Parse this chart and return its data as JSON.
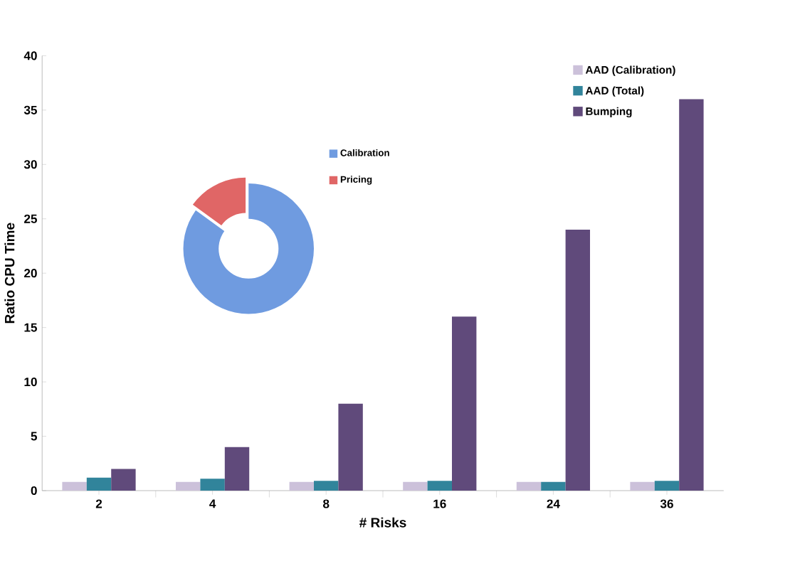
{
  "chart_data": [
    {
      "type": "bar",
      "xlabel": "# Risks",
      "ylabel": "Ratio CPU Time",
      "categories": [
        "2",
        "4",
        "8",
        "16",
        "24",
        "36"
      ],
      "series": [
        {
          "name": "AAD (Calibration)",
          "color": "#ccc1da",
          "values": [
            0.8,
            0.8,
            0.8,
            0.8,
            0.8,
            0.8
          ]
        },
        {
          "name": "AAD (Total)",
          "color": "#31849b",
          "values": [
            1.2,
            1.1,
            0.9,
            0.9,
            0.8,
            0.9
          ]
        },
        {
          "name": "Bumping",
          "color": "#604a7b",
          "values": [
            2,
            4,
            8,
            16,
            24,
            36
          ]
        }
      ],
      "ylim": [
        0,
        40
      ],
      "yticks": [
        0,
        5,
        10,
        15,
        20,
        25,
        30,
        35,
        40
      ],
      "legend": "top right",
      "grid": false
    },
    {
      "type": "donut",
      "categories": [
        "Calibration",
        "Pricing"
      ],
      "values": [
        85,
        15
      ],
      "colors": [
        "#6f9be0",
        "#e06666"
      ],
      "legend": "right"
    }
  ]
}
